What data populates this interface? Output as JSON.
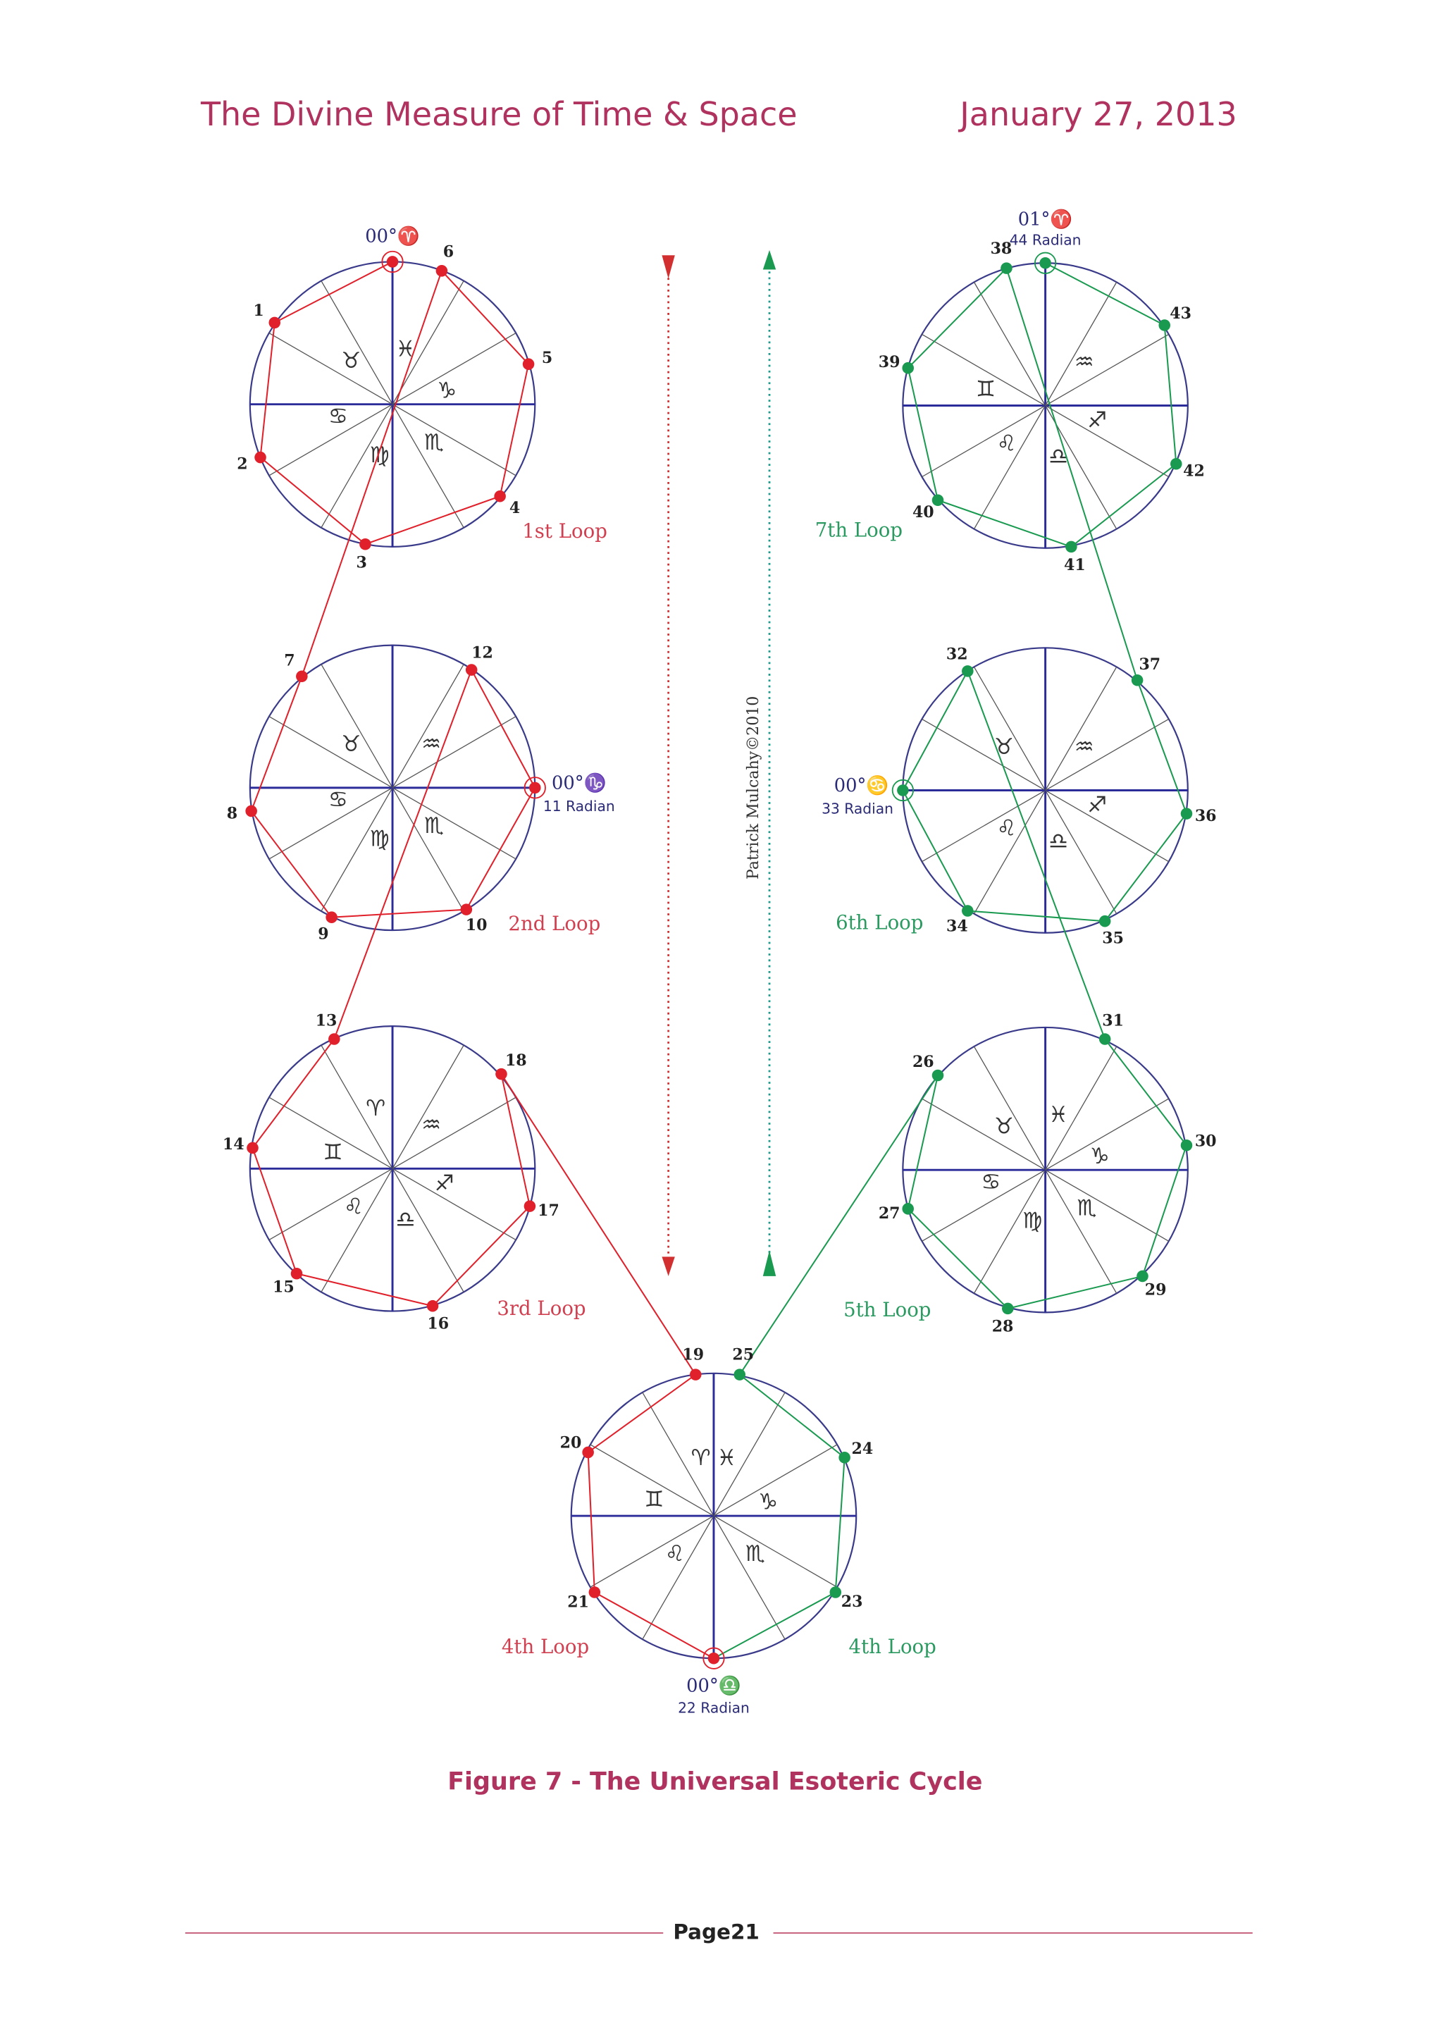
{
  "header": {
    "title": "The Divine Measure of Time & Space",
    "date": "January 27, 2013"
  },
  "figure": {
    "caption": "Figure 7 - The Universal Esoteric Cycle",
    "credit": "Patrick Mulcahy©2010",
    "loops": [
      {
        "label": "1st Loop"
      },
      {
        "label": "2nd Loop"
      },
      {
        "label": "3rd Loop"
      },
      {
        "label": "4th Loop"
      },
      {
        "label": "4th Loop"
      },
      {
        "label": "5th Loop"
      },
      {
        "label": "6th Loop"
      },
      {
        "label": "7th Loop"
      }
    ],
    "circles": [
      {
        "signs": [
          "♉",
          "♓",
          "♑",
          "♋",
          "♍",
          "♏"
        ]
      },
      {
        "signs": [
          "♉",
          "♒",
          "♋",
          "♏",
          "♍"
        ]
      },
      {
        "signs": [
          "♈",
          "♒",
          "♊",
          "♐",
          "♌",
          "♎"
        ]
      },
      {
        "signs": [
          "♈",
          "♓",
          "♊",
          "♑",
          "♌",
          "♏"
        ]
      },
      {
        "signs": [
          "♉",
          "♓",
          "♑",
          "♋",
          "♏",
          "♍"
        ]
      },
      {
        "signs": [
          "♉",
          "♒",
          "♐",
          "♌",
          "♎"
        ]
      },
      {
        "signs": [
          "♊",
          "♒",
          "♐",
          "♌",
          "♎"
        ]
      }
    ],
    "points": [
      {
        "degree": "00°♈"
      },
      {
        "label": "1"
      },
      {
        "label": "2"
      },
      {
        "label": "3"
      },
      {
        "label": "4"
      },
      {
        "label": "5"
      },
      {
        "label": "6"
      },
      {
        "label": "7"
      },
      {
        "label": "8"
      },
      {
        "label": "9"
      },
      {
        "label": "10"
      },
      {
        "degree": "00°♑",
        "radian": "11 Radian"
      },
      {
        "label": "12"
      },
      {
        "label": "13"
      },
      {
        "label": "14"
      },
      {
        "label": "15"
      },
      {
        "label": "16"
      },
      {
        "label": "17"
      },
      {
        "label": "18"
      },
      {
        "label": "19"
      },
      {
        "label": "20"
      },
      {
        "label": "21"
      },
      {
        "degree": "00°♎",
        "radian": "22 Radian"
      },
      {
        "label": "23"
      },
      {
        "label": "24"
      },
      {
        "label": "25"
      },
      {
        "label": "26"
      },
      {
        "label": "27"
      },
      {
        "label": "28"
      },
      {
        "label": "29"
      },
      {
        "label": "30"
      },
      {
        "label": "31"
      },
      {
        "label": "32"
      },
      {
        "degree": "00°♋",
        "radian": "33 Radian"
      },
      {
        "label": "34"
      },
      {
        "label": "35"
      },
      {
        "label": "36"
      },
      {
        "label": "37"
      },
      {
        "label": "38"
      },
      {
        "label": "39"
      },
      {
        "label": "40"
      },
      {
        "label": "41"
      },
      {
        "label": "42"
      },
      {
        "label": "43"
      },
      {
        "degree": "01°♈",
        "radian": "44 Radian"
      }
    ]
  },
  "footer": {
    "page": "Page21"
  }
}
